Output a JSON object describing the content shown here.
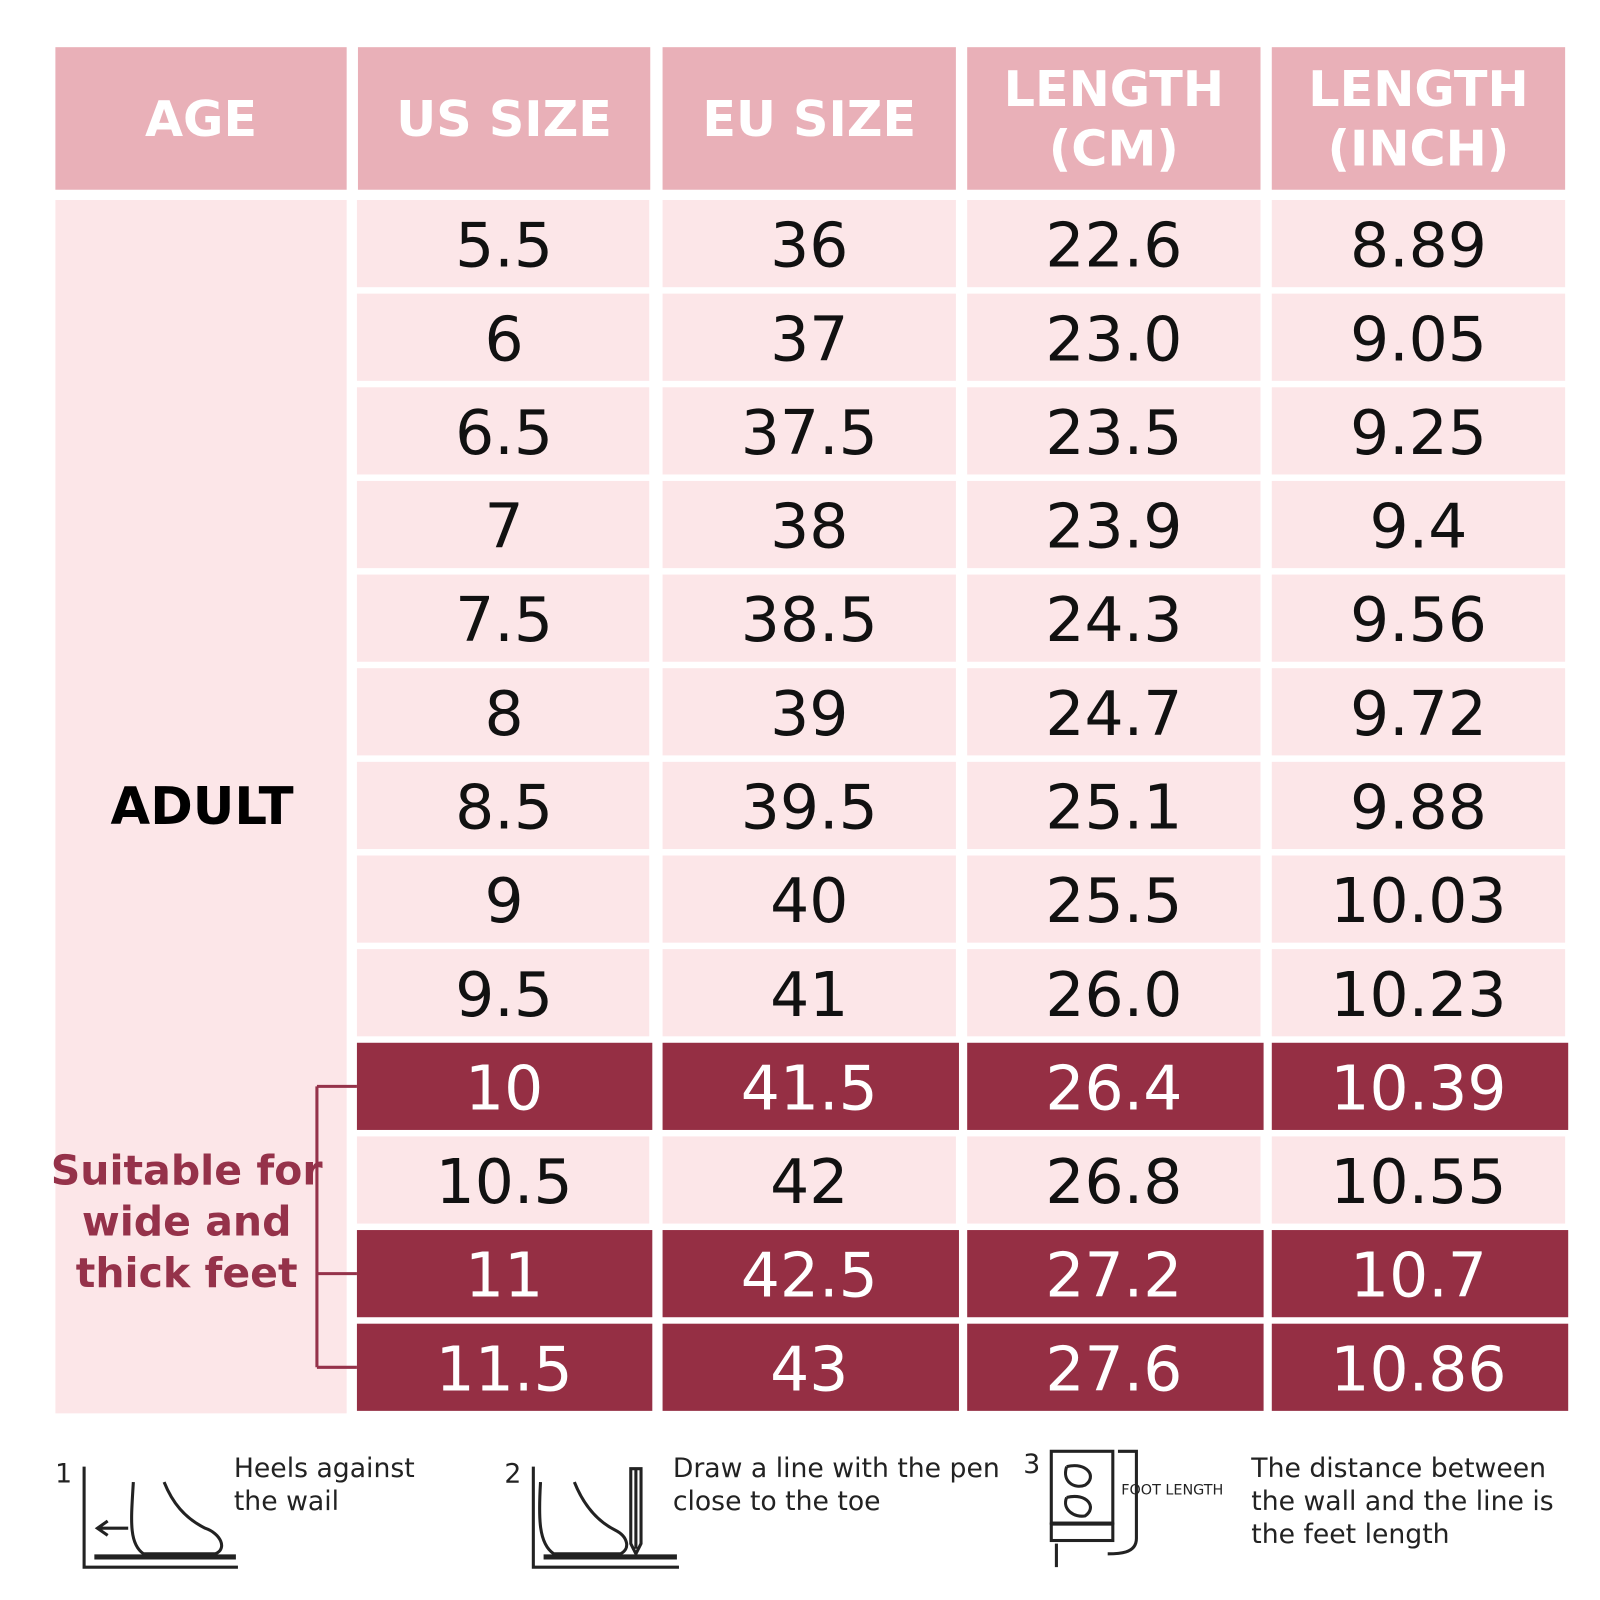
{
  "table": {
    "headers": [
      [
        "AGE"
      ],
      [
        "US SIZE"
      ],
      [
        "EU SIZE"
      ],
      [
        "LENGTH",
        "(CM)"
      ],
      [
        "LENGTH",
        "(INCH)"
      ]
    ],
    "age_group": "ADULT",
    "note": [
      "Suitable for",
      "wide and",
      "thick feet"
    ],
    "rows": [
      {
        "cells": [
          "5.5",
          "36",
          "22.6",
          "8.89"
        ],
        "highlight": false
      },
      {
        "cells": [
          "6",
          "37",
          "23.0",
          "9.05"
        ],
        "highlight": false
      },
      {
        "cells": [
          "6.5",
          "37.5",
          "23.5",
          "9.25"
        ],
        "highlight": false
      },
      {
        "cells": [
          "7",
          "38",
          "23.9",
          "9.4"
        ],
        "highlight": false
      },
      {
        "cells": [
          "7.5",
          "38.5",
          "24.3",
          "9.56"
        ],
        "highlight": false
      },
      {
        "cells": [
          "8",
          "39",
          "24.7",
          "9.72"
        ],
        "highlight": false
      },
      {
        "cells": [
          "8.5",
          "39.5",
          "25.1",
          "9.88"
        ],
        "highlight": false
      },
      {
        "cells": [
          "9",
          "40",
          "25.5",
          "10.03"
        ],
        "highlight": false
      },
      {
        "cells": [
          "9.5",
          "41",
          "26.0",
          "10.23"
        ],
        "highlight": false
      },
      {
        "cells": [
          "10",
          "41.5",
          "26.4",
          "10.39"
        ],
        "highlight": true
      },
      {
        "cells": [
          "10.5",
          "42",
          "26.8",
          "10.55"
        ],
        "highlight": false
      },
      {
        "cells": [
          "11",
          "42.5",
          "27.2",
          "10.7"
        ],
        "highlight": true
      },
      {
        "cells": [
          "11.5",
          "43",
          "27.6",
          "10.86"
        ],
        "highlight": true
      }
    ]
  },
  "steps": [
    {
      "number": "1",
      "lines": [
        "Heels against",
        "the wail"
      ]
    },
    {
      "number": "2",
      "lines": [
        "Draw a line with the pen",
        "close to the toe"
      ]
    },
    {
      "number": "3",
      "icon_label": "FOOT LENGTH",
      "lines": [
        "The distance between",
        "the wall and the line is",
        "the feet length"
      ]
    }
  ]
}
